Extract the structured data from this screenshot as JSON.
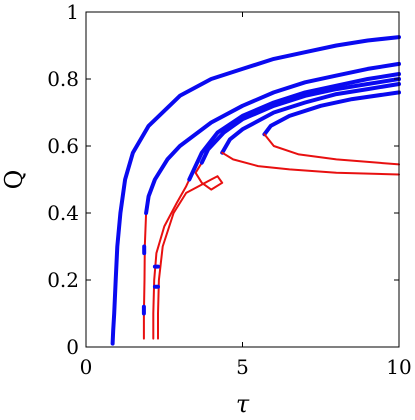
{
  "chart_data": {
    "type": "line",
    "title": "",
    "xlabel": "τ",
    "ylabel": "Q",
    "xlim": [
      0,
      10
    ],
    "ylim": [
      0,
      1
    ],
    "xticks": [
      0,
      5,
      10
    ],
    "yticks": [
      0,
      0.2,
      0.4,
      0.6,
      0.8,
      1
    ],
    "xtick_labels": [
      "0",
      "5",
      "10"
    ],
    "ytick_labels": [
      "0",
      "0.2",
      "0.4",
      "0.6",
      "0.8",
      "1"
    ],
    "grid": false,
    "legend": "none",
    "colors": {
      "stable": "#0a0af0",
      "unstable": "#e81010"
    },
    "series": [
      {
        "color": "stable",
        "style": "thick",
        "points": [
          [
            0.85,
            0.01
          ],
          [
            0.87,
            0.05
          ],
          [
            0.9,
            0.1
          ],
          [
            0.95,
            0.2
          ],
          [
            1.0,
            0.3
          ],
          [
            1.1,
            0.4
          ],
          [
            1.25,
            0.5
          ],
          [
            1.5,
            0.58
          ],
          [
            2.0,
            0.66
          ],
          [
            3.0,
            0.75
          ],
          [
            4.0,
            0.8
          ],
          [
            5.0,
            0.83
          ],
          [
            6.0,
            0.86
          ],
          [
            7.0,
            0.88
          ],
          [
            8.0,
            0.9
          ],
          [
            9.0,
            0.915
          ],
          [
            10.0,
            0.925
          ]
        ]
      },
      {
        "color": "unstable",
        "style": "thin",
        "points": [
          [
            1.85,
            0.025
          ],
          [
            1.85,
            0.1
          ],
          [
            1.87,
            0.2
          ],
          [
            1.88,
            0.3
          ],
          [
            1.92,
            0.4
          ]
        ]
      },
      {
        "color": "stable",
        "style": "thick",
        "points": [
          [
            1.85,
            0.1
          ],
          [
            1.85,
            0.12
          ]
        ]
      },
      {
        "color": "stable",
        "style": "thick",
        "points": [
          [
            1.86,
            0.28
          ],
          [
            1.86,
            0.3
          ]
        ]
      },
      {
        "color": "stable",
        "style": "thick",
        "points": [
          [
            1.92,
            0.4
          ],
          [
            2.0,
            0.45
          ],
          [
            2.2,
            0.5
          ],
          [
            2.6,
            0.56
          ],
          [
            3.0,
            0.6
          ],
          [
            4.0,
            0.67
          ],
          [
            5.0,
            0.72
          ],
          [
            6.0,
            0.76
          ],
          [
            7.0,
            0.79
          ],
          [
            8.0,
            0.81
          ],
          [
            9.0,
            0.83
          ],
          [
            10.0,
            0.845
          ]
        ]
      },
      {
        "color": "unstable",
        "style": "thin",
        "points": [
          [
            2.15,
            0.025
          ],
          [
            2.15,
            0.1
          ],
          [
            2.18,
            0.2
          ],
          [
            2.25,
            0.28
          ],
          [
            2.5,
            0.36
          ],
          [
            2.9,
            0.43
          ],
          [
            3.2,
            0.48
          ],
          [
            3.3,
            0.5
          ]
        ]
      },
      {
        "color": "unstable",
        "style": "thin",
        "points": [
          [
            2.3,
            0.025
          ],
          [
            2.3,
            0.1
          ],
          [
            2.33,
            0.2
          ],
          [
            2.45,
            0.3
          ],
          [
            2.8,
            0.4
          ],
          [
            3.2,
            0.46
          ],
          [
            3.6,
            0.48
          ],
          [
            4.0,
            0.5
          ],
          [
            4.2,
            0.51
          ],
          [
            4.35,
            0.49
          ],
          [
            4.0,
            0.47
          ],
          [
            3.7,
            0.49
          ],
          [
            3.5,
            0.52
          ],
          [
            3.7,
            0.55
          ]
        ]
      },
      {
        "color": "stable",
        "style": "thick",
        "points": [
          [
            2.2,
            0.18
          ],
          [
            2.3,
            0.18
          ]
        ]
      },
      {
        "color": "stable",
        "style": "thick",
        "points": [
          [
            2.2,
            0.24
          ],
          [
            2.3,
            0.24
          ]
        ]
      },
      {
        "color": "stable",
        "style": "thick",
        "points": [
          [
            3.3,
            0.5
          ],
          [
            3.45,
            0.53
          ],
          [
            3.7,
            0.58
          ],
          [
            4.2,
            0.64
          ],
          [
            5.0,
            0.69
          ],
          [
            6.0,
            0.73
          ],
          [
            7.0,
            0.76
          ],
          [
            8.0,
            0.78
          ],
          [
            9.0,
            0.8
          ],
          [
            10.0,
            0.815
          ]
        ]
      },
      {
        "color": "stable",
        "style": "thick",
        "points": [
          [
            3.7,
            0.55
          ],
          [
            3.9,
            0.59
          ],
          [
            4.4,
            0.64
          ],
          [
            5.0,
            0.68
          ],
          [
            6.0,
            0.72
          ],
          [
            7.0,
            0.75
          ],
          [
            8.0,
            0.77
          ],
          [
            9.0,
            0.785
          ],
          [
            10.0,
            0.8
          ]
        ]
      },
      {
        "color": "stable",
        "style": "thick",
        "points": [
          [
            4.35,
            0.58
          ],
          [
            4.6,
            0.62
          ],
          [
            5.0,
            0.65
          ],
          [
            6.0,
            0.7
          ],
          [
            7.0,
            0.73
          ],
          [
            8.0,
            0.755
          ],
          [
            9.0,
            0.77
          ],
          [
            10.0,
            0.785
          ]
        ]
      },
      {
        "color": "unstable",
        "style": "thin",
        "points": [
          [
            4.35,
            0.58
          ],
          [
            4.7,
            0.56
          ],
          [
            5.5,
            0.54
          ],
          [
            6.5,
            0.53
          ],
          [
            8.0,
            0.52
          ],
          [
            10.0,
            0.515
          ]
        ]
      },
      {
        "color": "stable",
        "style": "thick",
        "points": [
          [
            5.7,
            0.635
          ],
          [
            5.9,
            0.66
          ],
          [
            6.5,
            0.69
          ],
          [
            7.5,
            0.72
          ],
          [
            8.5,
            0.74
          ],
          [
            10.0,
            0.76
          ]
        ]
      },
      {
        "color": "unstable",
        "style": "thin",
        "points": [
          [
            5.7,
            0.635
          ],
          [
            6.0,
            0.6
          ],
          [
            6.8,
            0.575
          ],
          [
            8.0,
            0.56
          ],
          [
            10.0,
            0.545
          ]
        ]
      }
    ]
  }
}
